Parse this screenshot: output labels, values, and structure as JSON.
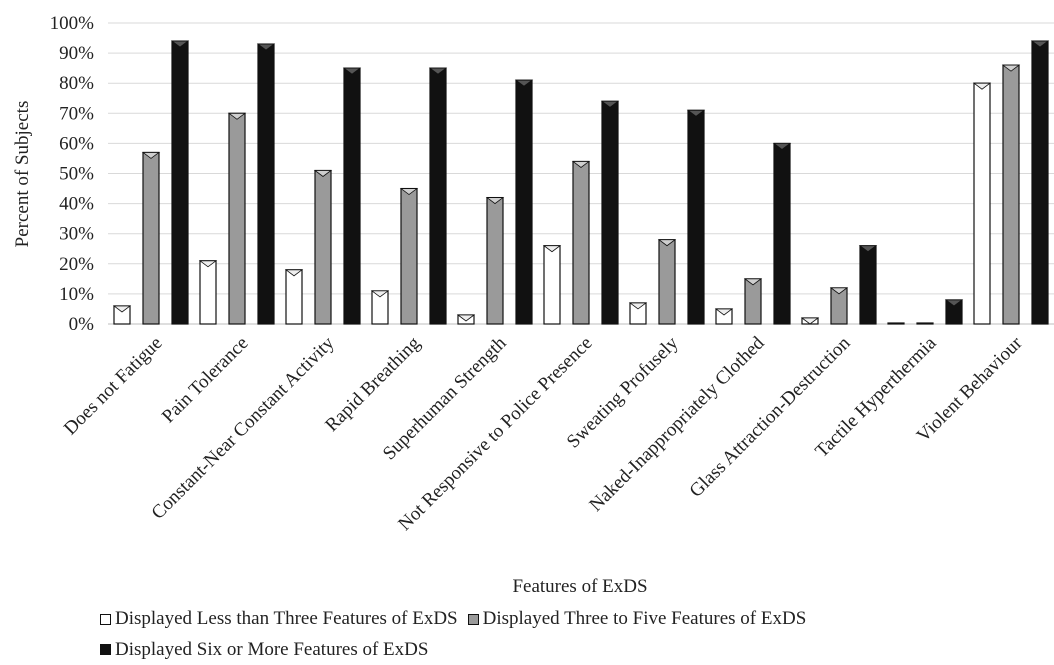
{
  "chart_data": {
    "type": "bar",
    "title": "",
    "xlabel": "Features of ExDS",
    "ylabel": "Percent of Subjects",
    "ylim": [
      0,
      100
    ],
    "yticks": [
      "0%",
      "10%",
      "20%",
      "30%",
      "40%",
      "50%",
      "60%",
      "70%",
      "80%",
      "90%",
      "100%"
    ],
    "grid": true,
    "legend_position": "bottom",
    "categories": [
      "Does not Fatigue",
      "Pain Tolerance",
      "Constant-Near Constant Activity",
      "Rapid Breathing",
      "Superhuman Strength",
      "Not Responsive to Police Presence",
      "Sweating Profusely",
      "Naked-Inappropriately Clothed",
      "Glass Attraction-Destruction",
      "Tactile Hyperthermia",
      "Violent Behaviour"
    ],
    "series": [
      {
        "name": "Displayed Less than Three Features of ExDS",
        "color": "#ffffff",
        "values": [
          6,
          21,
          18,
          11,
          3,
          26,
          7,
          5,
          2,
          0.3,
          80
        ]
      },
      {
        "name": "Displayed Three to Five Features of ExDS",
        "color": "#9a9a9a",
        "values": [
          57,
          70,
          51,
          45,
          42,
          54,
          28,
          15,
          12,
          0.3,
          86
        ]
      },
      {
        "name": "Displayed Six or More Features of ExDS",
        "color": "#111111",
        "values": [
          94,
          93,
          85,
          85,
          81,
          74,
          71,
          60,
          26,
          8,
          94
        ]
      }
    ]
  }
}
